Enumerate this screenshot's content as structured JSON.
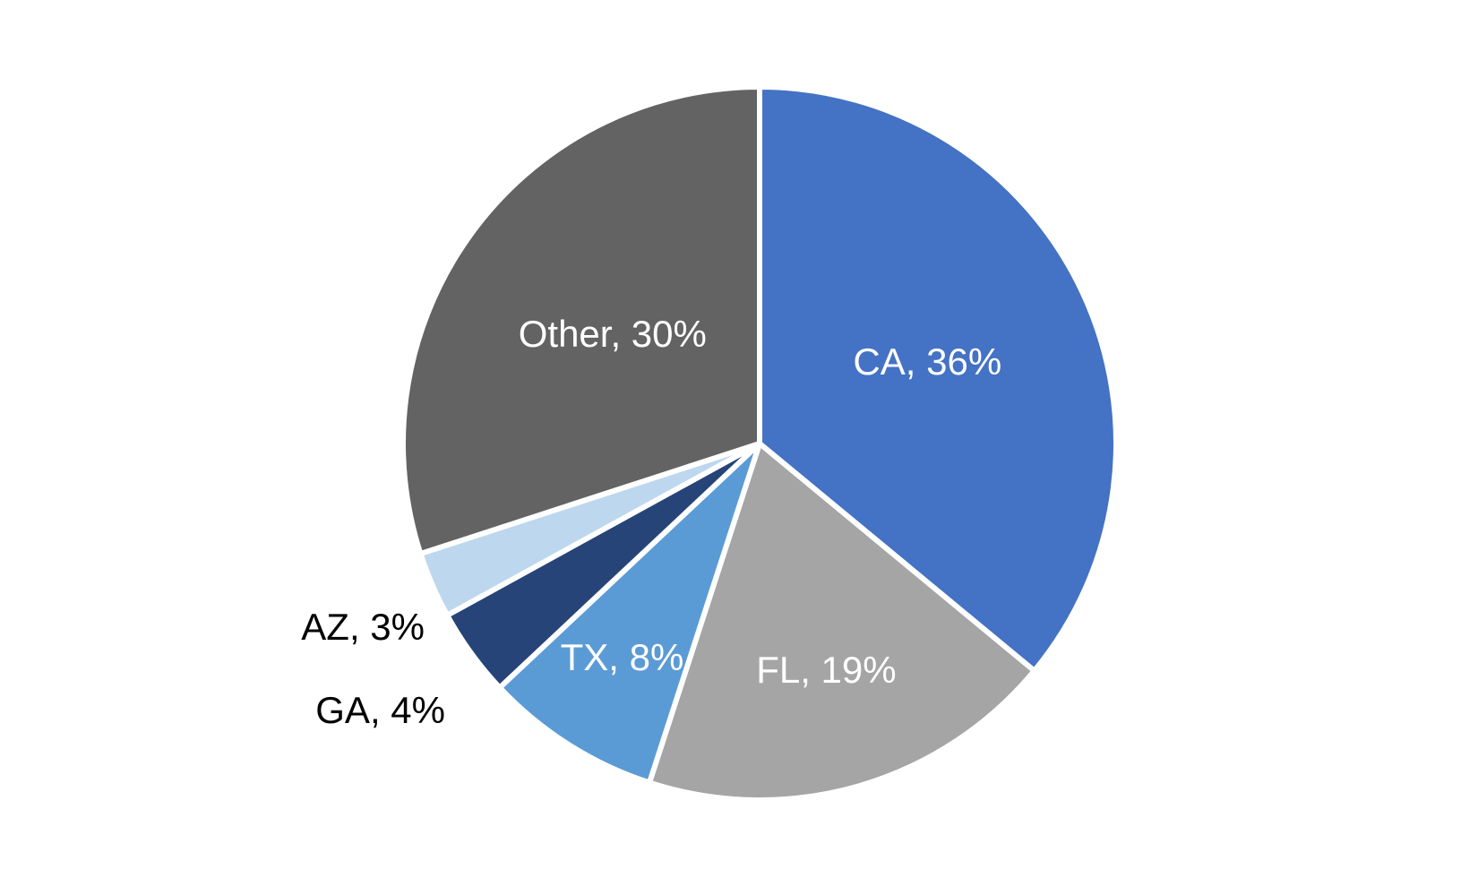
{
  "chart_data": {
    "type": "pie",
    "title": "",
    "start_angle_deg": 0,
    "direction": "clockwise",
    "legend": "none",
    "slices": [
      {
        "label": "CA",
        "value": 36,
        "display": "CA, 36%",
        "color": "#4472C4",
        "label_color": "#FFFFFF"
      },
      {
        "label": "FL",
        "value": 19,
        "display": "FL, 19%",
        "color": "#A5A5A5",
        "label_color": "#FFFFFF"
      },
      {
        "label": "TX",
        "value": 8,
        "display": "TX, 8%",
        "color": "#5B9BD5",
        "label_color": "#FFFFFF"
      },
      {
        "label": "GA",
        "value": 4,
        "display": "GA, 4%",
        "color": "#264478",
        "label_color": "#000000"
      },
      {
        "label": "AZ",
        "value": 3,
        "display": "AZ, 3%",
        "color": "#BDD7EE",
        "label_color": "#000000"
      },
      {
        "label": "Other",
        "value": 30,
        "display": "Other, 30%",
        "color": "#636363",
        "label_color": "#FFFFFF"
      }
    ]
  }
}
